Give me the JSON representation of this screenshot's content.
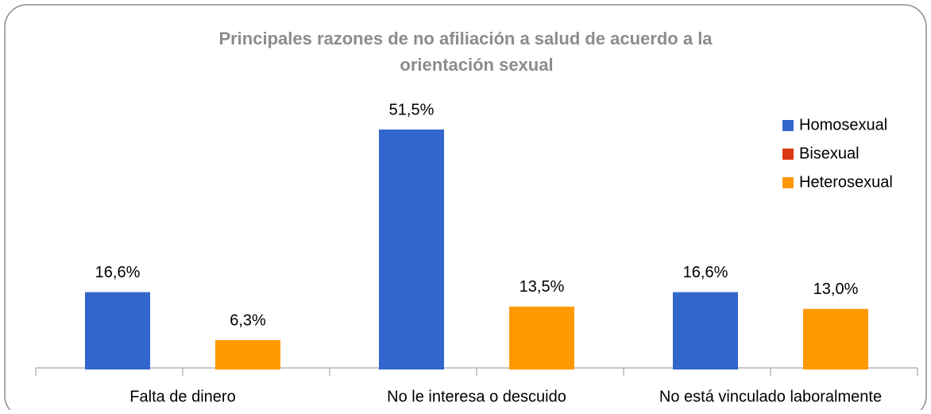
{
  "chart_data": {
    "type": "bar",
    "title": [
      "Principales razones de no afiliación a salud de acuerdo a la",
      "orientación sexual"
    ],
    "categories": [
      "Falta de dinero",
      "No le interesa o descuido",
      "No está vinculado laboralmente"
    ],
    "series": [
      {
        "name": "Homosexual",
        "color": "#3366cc",
        "values": [
          16.6,
          51.5,
          16.6
        ],
        "value_labels": [
          "16,6%",
          "51,5%",
          "16,6%"
        ]
      },
      {
        "name": "Bisexual",
        "color": "#dc3912",
        "values": [
          null,
          null,
          null
        ],
        "value_labels": [
          null,
          null,
          null
        ]
      },
      {
        "name": "Heterosexual",
        "color": "#ff9900",
        "values": [
          6.3,
          13.5,
          13.0
        ],
        "value_labels": [
          "6,3%",
          "13,5%",
          "13,0%"
        ]
      }
    ],
    "legend": "right"
  }
}
